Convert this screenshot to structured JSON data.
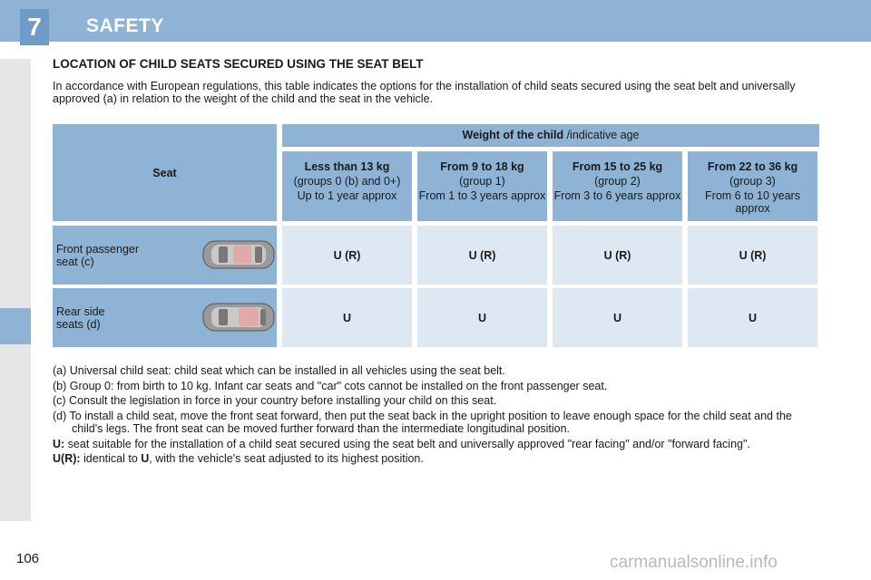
{
  "header": {
    "chapter_number": "7",
    "title": "SAFETY"
  },
  "heading": "LOCATION OF CHILD SEATS SECURED USING THE SEAT BELT",
  "intro": "In accordance with European regulations, this table indicates the options for the installation of child seats secured using the seat belt and universally approved (a) in relation to the weight of the child and the seat in the vehicle.",
  "table": {
    "seat_header": "Seat",
    "weight_header_bold": "Weight of the child",
    "weight_header_rest": " /indicative age",
    "columns": [
      {
        "title": "Less than 13 kg",
        "line1": "(groups 0 (b) and 0+)",
        "line2": "Up to 1 year approx"
      },
      {
        "title": "From 9 to 18 kg",
        "line1": "(group 1)",
        "line2": "From 1 to 3 years approx"
      },
      {
        "title": "From 15 to 25 kg",
        "line1": "(group 2)",
        "line2": "From 3 to 6 years approx"
      },
      {
        "title": "From 22 to 36 kg",
        "line1": "(group 3)",
        "line2": "From 6 to 10 years approx"
      }
    ],
    "rows": [
      {
        "label_line1": "Front passenger",
        "label_line2": "seat (c)",
        "values": [
          "U (R)",
          "U (R)",
          "U (R)",
          "U (R)"
        ]
      },
      {
        "label_line1": "Rear side",
        "label_line2": "seats (d)",
        "values": [
          "U",
          "U",
          "U",
          "U"
        ]
      }
    ]
  },
  "notes": {
    "a": "(a) Universal child seat: child seat which can be installed in all vehicles using the seat belt.",
    "b": "(b) Group 0: from birth to 10 kg. Infant car seats and \"car\" cots cannot be installed on the front passenger seat.",
    "c": "(c) Consult the legislation in force in your country before installing your child on this seat.",
    "d": "(d) To install a child seat, move the front seat forward, then put the seat back in the upright position to leave enough space for the child seat and the child's legs. The front seat can be moved further forward than the intermediate longitudinal position.",
    "u_label": "U:",
    "u_text": " seat suitable for the installation of a child seat secured using the seat belt and universally approved \"rear facing\" and/or \"forward facing\".",
    "ur_label": "U(R):",
    "ur_text_1": " identical to ",
    "ur_text_bold": "U",
    "ur_text_2": ", with the vehicle's seat adjusted to its highest position."
  },
  "page_number": "106",
  "watermark": "carmanualsonline.info",
  "colors": {
    "header": "#8fb3d5",
    "badge": "#6e9bc7",
    "cell_light": "#dde8f3"
  }
}
